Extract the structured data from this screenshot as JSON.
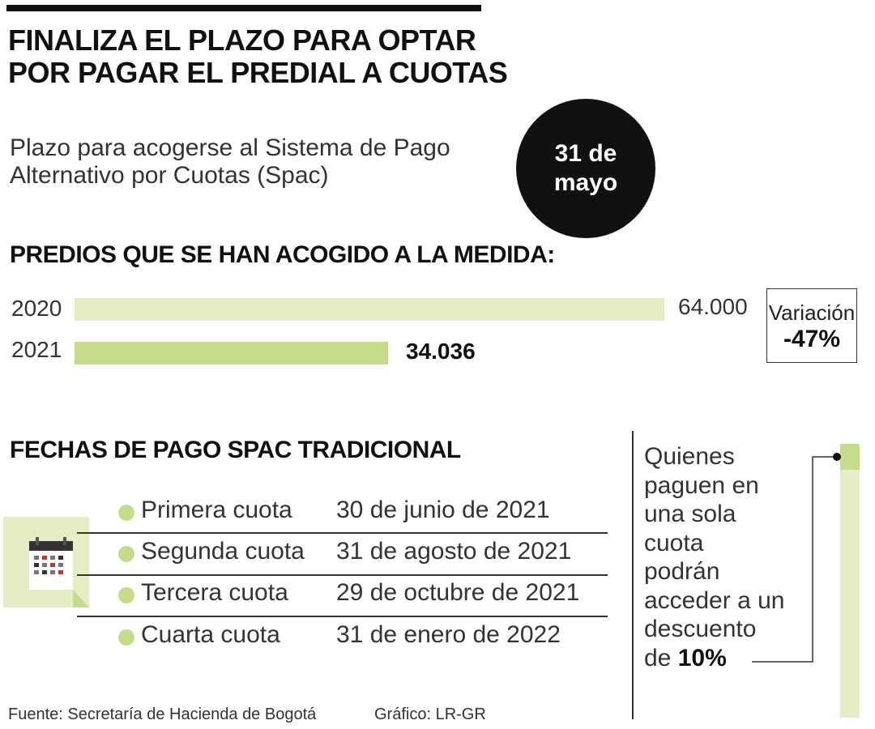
{
  "header": {
    "title_line1": "FINALIZA EL PLAZO PARA OPTAR",
    "title_line2": "POR PAGAR EL PREDIAL A CUOTAS",
    "subtitle_line1": "Plazo para acogerse al Sistema de Pago",
    "subtitle_line2": "Alternativo por Cuotas (Spac)",
    "deadline_line1": "31 de",
    "deadline_line2": "mayo"
  },
  "predios": {
    "heading": "PREDIOS QUE SE HAN ACOGIDO A LA MEDIDA:",
    "variation_label": "Variación",
    "variation_value": "-47%"
  },
  "chart_data": {
    "type": "bar",
    "orientation": "horizontal",
    "title": "PREDIOS QUE SE HAN ACOGIDO A LA MEDIDA:",
    "categories": [
      "2020",
      "2021"
    ],
    "values": [
      64000,
      34036
    ],
    "value_labels": [
      "64.000",
      "34.036"
    ],
    "colors": [
      "#e5edc4",
      "#c5dc8a"
    ],
    "xlim": [
      0,
      64000
    ],
    "xlabel": "",
    "ylabel": ""
  },
  "fechas": {
    "heading": "FECHAS DE PAGO SPAC TRADICIONAL",
    "rows": [
      {
        "label": "Primera cuota",
        "date": "30 de junio de 2021"
      },
      {
        "label": "Segunda cuota",
        "date": "31 de agosto de 2021"
      },
      {
        "label": "Tercera cuota",
        "date": "29 de octubre de 2021"
      },
      {
        "label": "Cuarta cuota",
        "date": "31 de enero de 2022"
      }
    ]
  },
  "note": {
    "lines": [
      "Quienes",
      "paguen en",
      "una sola",
      "cuota",
      "podrán",
      "acceder a un",
      "descuento"
    ],
    "last_prefix": "de ",
    "last_bold": "10%"
  },
  "footer": {
    "source": "Fuente: Secretaría de Hacienda de Bogotá",
    "credit": "Gráfico: LR-GR"
  },
  "colors": {
    "accent_light": "#e5edc4",
    "accent": "#c5dc8a",
    "ink": "#111111"
  }
}
